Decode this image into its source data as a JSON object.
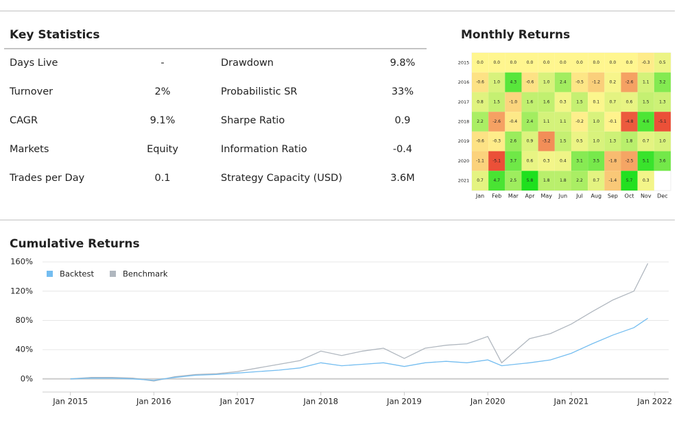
{
  "key_statistics": {
    "title": "Key Statistics",
    "rows": [
      [
        "Days Live",
        "-",
        "Drawdown",
        "9.8%"
      ],
      [
        "Turnover",
        "2%",
        "Probabilistic SR",
        "33%"
      ],
      [
        "CAGR",
        "9.1%",
        "Sharpe Ratio",
        "0.9"
      ],
      [
        "Markets",
        "Equity",
        "Information Ratio",
        "-0.4"
      ],
      [
        "Trades per Day",
        "0.1",
        "Strategy Capacity (USD)",
        "3.6M"
      ]
    ]
  },
  "chart_data": [
    {
      "type": "heatmap",
      "title": "Monthly Returns",
      "x": [
        "Jan",
        "Feb",
        "Mar",
        "Apr",
        "May",
        "Jun",
        "Jul",
        "Aug",
        "Sep",
        "Oct",
        "Nov",
        "Dec"
      ],
      "y": [
        "2015",
        "2016",
        "2017",
        "2018",
        "2019",
        "2020",
        "2021"
      ],
      "values": [
        [
          0,
          0,
          0,
          0,
          0,
          0,
          0,
          0,
          0,
          0,
          -0.3,
          0.5
        ],
        [
          -0.6,
          1.0,
          4.3,
          -0.6,
          1.0,
          2.4,
          -0.5,
          -1.2,
          0.2,
          -2.6,
          1.1,
          3.2
        ],
        [
          0.8,
          1.5,
          -1.0,
          1.6,
          1.6,
          0.3,
          1.5,
          0.1,
          0.7,
          0.6,
          1.5,
          1.3
        ],
        [
          2.2,
          -2.6,
          -0.4,
          2.4,
          1.1,
          1.1,
          -0.2,
          1.0,
          -0.1,
          -4.8,
          4.6,
          -5.1
        ],
        [
          -0.6,
          -0.3,
          2.6,
          0.9,
          -3.2,
          1.5,
          0.5,
          1.0,
          1.3,
          1.8,
          0.7,
          1.0
        ],
        [
          -1.1,
          -5.1,
          3.7,
          0.6,
          0.3,
          0.4,
          3.1,
          3.5,
          -1.8,
          -2.5,
          5.1,
          3.6
        ],
        [
          0.7,
          4.7,
          2.5,
          5.8,
          1.8,
          1.8,
          2.2,
          0.7,
          -1.4,
          5.7,
          0.3,
          null
        ]
      ],
      "value_labels": [
        [
          "0.0",
          "0.0",
          "0.0",
          "0.0",
          "0.0",
          "0.0",
          "0.0",
          "0.0",
          "0.0",
          "0.0",
          "-0.3",
          "0.5"
        ],
        [
          "-0.6",
          "1.0",
          "4.3",
          "-0.6",
          "1.0",
          "2.4",
          "-0.5",
          "-1.2",
          "0.2",
          "-2.6",
          "1.1",
          "3.2"
        ],
        [
          "0.8",
          "1.5",
          "-1.0",
          "1.6",
          "1.6",
          "0.3",
          "1.5",
          "0.1",
          "0.7",
          "0.6",
          "1.5",
          "1.3"
        ],
        [
          "2.2",
          "-2.6",
          "-0.4",
          "2.4",
          "1.1",
          "1.1",
          "-0.2",
          "1.0",
          "-0.1",
          "-4.8",
          "4.6",
          "-5.1"
        ],
        [
          "-0.6",
          "-0.3",
          "2.6",
          "0.9",
          "-3.2",
          "1.5",
          "0.5",
          "1.0",
          "1.3",
          "1.8",
          "0.7",
          "1.0"
        ],
        [
          "-1.1",
          "-5.1",
          "3.7",
          "0.6",
          "0.3",
          "0.4",
          "3.1",
          "3.5",
          "-1.8",
          "-2.5",
          "5.1",
          "3.6"
        ],
        [
          "0.7",
          "4.7",
          "2.5",
          "5.8",
          "1.8",
          "1.8",
          "2.2",
          "0.7",
          "-1.4",
          "5.7",
          "0.3",
          null
        ]
      ],
      "colors": {
        "negative": "#e8392c",
        "zero": "#fff68f",
        "positive": "#1ee01e"
      }
    },
    {
      "type": "line",
      "title": "Cumulative Returns",
      "x": [
        "2015-01",
        "2015-04",
        "2015-07",
        "2015-10",
        "2016-01",
        "2016-04",
        "2016-07",
        "2016-10",
        "2017-01",
        "2017-04",
        "2017-07",
        "2017-10",
        "2018-01",
        "2018-04",
        "2018-07",
        "2018-10",
        "2019-01",
        "2019-04",
        "2019-07",
        "2019-10",
        "2020-01",
        "2020-03",
        "2020-07",
        "2020-10",
        "2021-01",
        "2021-04",
        "2021-07",
        "2021-10",
        "2021-12"
      ],
      "series": [
        {
          "name": "Backtest",
          "color": "#74bdf0",
          "values": [
            0,
            1,
            1,
            0,
            -2,
            2,
            5,
            6,
            8,
            10,
            12,
            15,
            22,
            18,
            20,
            22,
            17,
            22,
            24,
            22,
            26,
            18,
            22,
            26,
            35,
            48,
            60,
            70,
            83
          ]
        },
        {
          "name": "Benchmark",
          "color": "#b0b7bf",
          "values": [
            0,
            2,
            2,
            1,
            -3,
            3,
            6,
            7,
            10,
            15,
            20,
            25,
            38,
            32,
            38,
            42,
            28,
            42,
            46,
            48,
            58,
            22,
            55,
            62,
            75,
            92,
            108,
            120,
            158
          ]
        }
      ],
      "xlim": [
        "2014-09",
        "2022-03"
      ],
      "xticks": [
        {
          "value": "2015-01",
          "label": "Jan 2015"
        },
        {
          "value": "2016-01",
          "label": "Jan 2016"
        },
        {
          "value": "2017-01",
          "label": "Jan 2017"
        },
        {
          "value": "2018-01",
          "label": "Jan 2018"
        },
        {
          "value": "2019-01",
          "label": "Jan 2019"
        },
        {
          "value": "2020-01",
          "label": "Jan 2020"
        },
        {
          "value": "2021-01",
          "label": "Jan 2021"
        },
        {
          "value": "2022-01",
          "label": "Jan 2022"
        }
      ],
      "ylim": [
        -18,
        162
      ],
      "yticks": [
        {
          "value": 0,
          "label": "0%"
        },
        {
          "value": 40,
          "label": "40%"
        },
        {
          "value": 80,
          "label": "80%"
        },
        {
          "value": 120,
          "label": "120%"
        },
        {
          "value": 160,
          "label": "160%"
        }
      ],
      "grid": true,
      "legend": "top-left"
    }
  ]
}
